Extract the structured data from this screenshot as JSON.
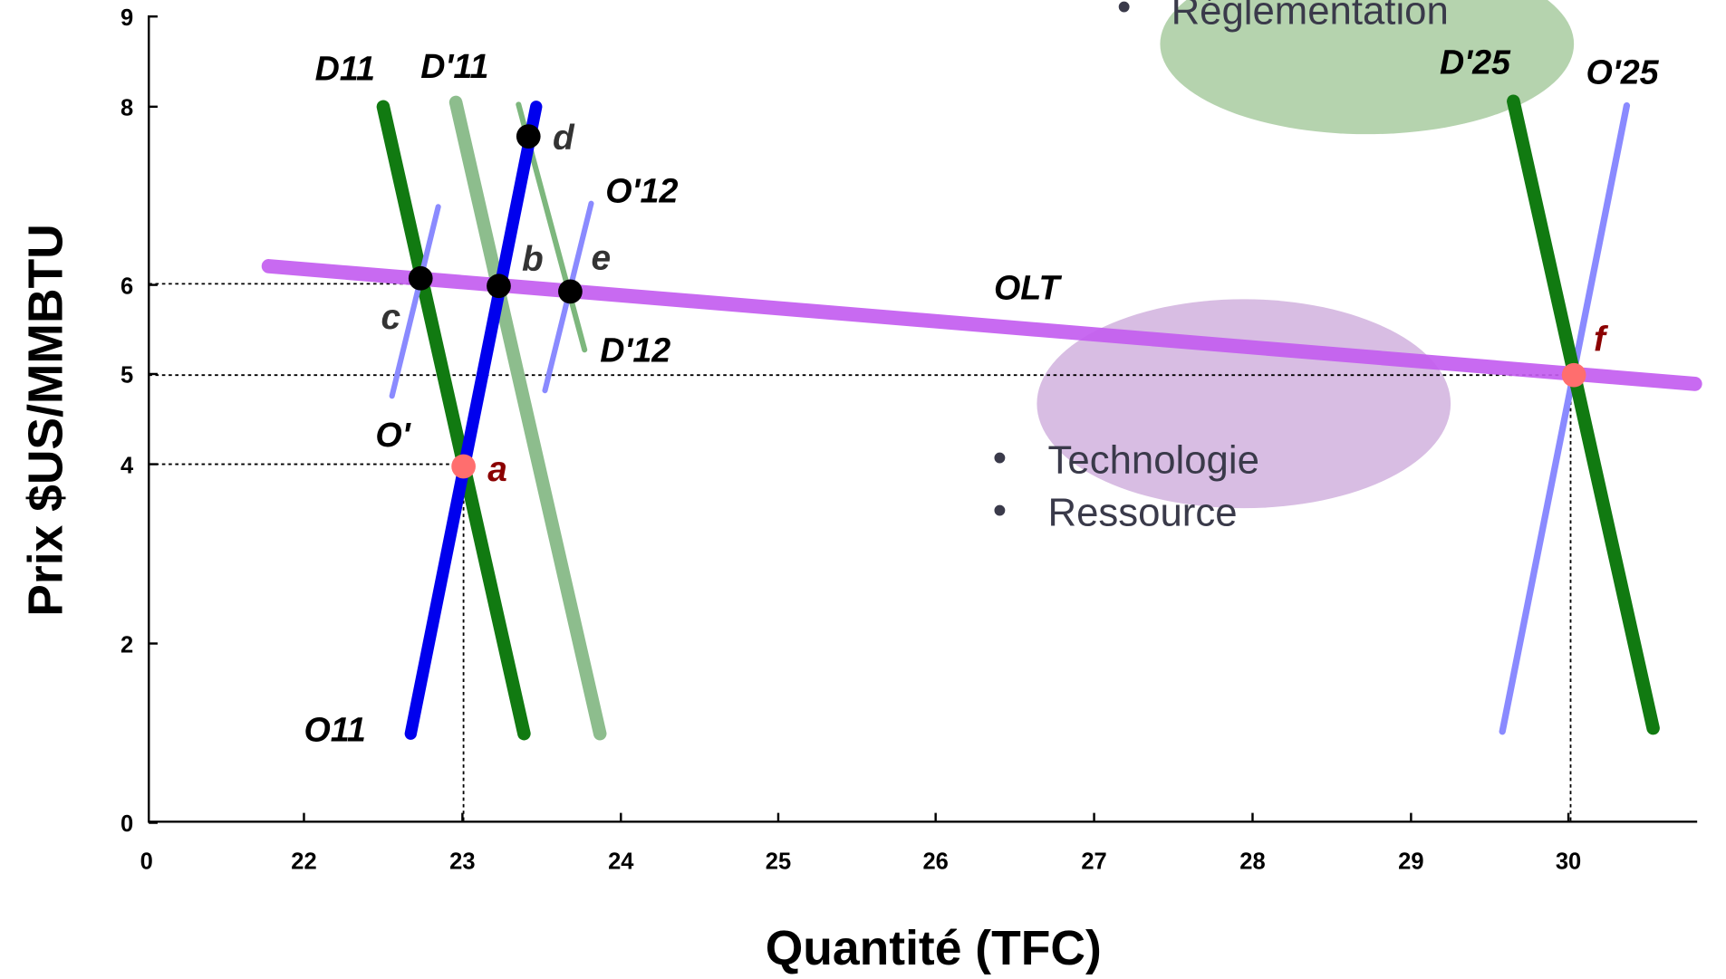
{
  "axes": {
    "y_label": "Prix $US/MMBTU",
    "x_label": "Quantité (TFC)",
    "y_ticks": [
      "9",
      "8",
      "6",
      "5",
      "4",
      "2",
      "0"
    ],
    "x_ticks": [
      "0",
      "22",
      "23",
      "24",
      "25",
      "26",
      "27",
      "28",
      "29",
      "30"
    ]
  },
  "curves": [
    "D11",
    "D'11",
    "O'12",
    "D'12",
    "O'",
    "O11",
    "OLT",
    "D'25",
    "O'25"
  ],
  "points": [
    "d",
    "b",
    "e",
    "c",
    "a",
    "f"
  ],
  "bubbles": {
    "top": [
      "Réglementation"
    ],
    "bottom": [
      "Technologie",
      "Ressource"
    ]
  }
}
